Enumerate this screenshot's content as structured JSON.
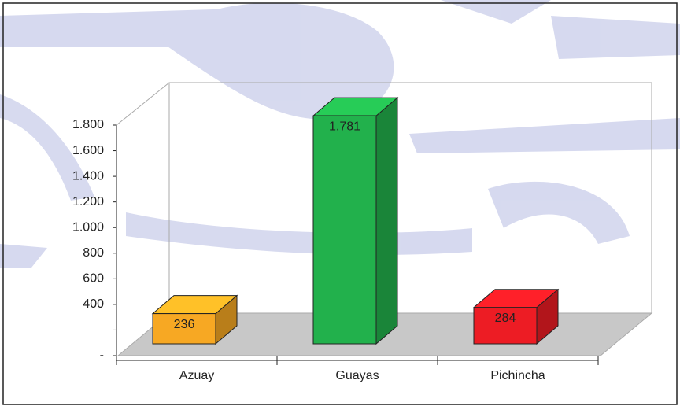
{
  "chart_data": {
    "type": "bar3d",
    "categories": [
      "Azuay",
      "Guayas",
      "Pichincha"
    ],
    "values": [
      236,
      1781,
      284
    ],
    "value_labels": [
      "236",
      "1.781",
      "284"
    ],
    "colors": [
      "#f7a823",
      "#22b14c",
      "#ed1c24"
    ],
    "ylim": [
      0,
      1800
    ],
    "yticks": [
      {
        "value": 0,
        "label": "-"
      },
      {
        "value": 200,
        "label": null
      },
      {
        "value": 400,
        "label": "400"
      },
      {
        "value": 600,
        "label": "600"
      },
      {
        "value": 800,
        "label": "800"
      },
      {
        "value": 1000,
        "label": "1.000"
      },
      {
        "value": 1200,
        "label": "1.200"
      },
      {
        "value": 1400,
        "label": "1.400"
      },
      {
        "value": 1600,
        "label": "1.600"
      },
      {
        "value": 1800,
        "label": "1.800"
      }
    ],
    "grid": false
  }
}
